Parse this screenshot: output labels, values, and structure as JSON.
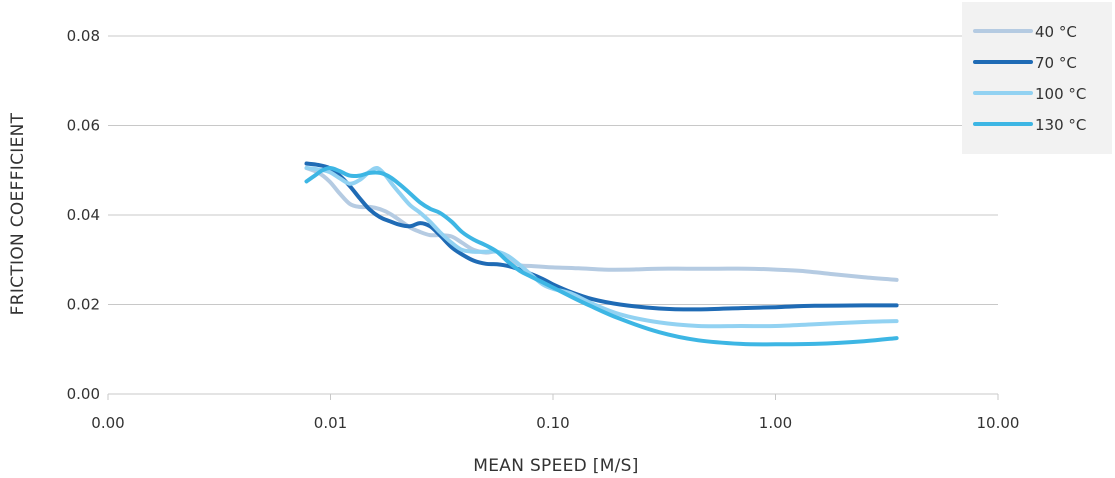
{
  "chart_data": {
    "type": "line",
    "xlabel": "MEAN SPEED [M/S]",
    "ylabel": "FRICTION COEFFICIENT",
    "xscale": "log",
    "xlim": [
      0.001,
      10
    ],
    "ylim": [
      0,
      0.08
    ],
    "x_ticks": [
      {
        "value": 0.001,
        "label": "0.00"
      },
      {
        "value": 0.01,
        "label": "0.01"
      },
      {
        "value": 0.1,
        "label": "0.10"
      },
      {
        "value": 1,
        "label": "1.00"
      },
      {
        "value": 10,
        "label": "10.00"
      }
    ],
    "y_ticks": [
      {
        "value": 0,
        "label": "0.00"
      },
      {
        "value": 0.02,
        "label": "0.02"
      },
      {
        "value": 0.04,
        "label": "0.04"
      },
      {
        "value": 0.06,
        "label": "0.06"
      },
      {
        "value": 0.08,
        "label": "0.08"
      }
    ],
    "grid": "horizontal",
    "legend_position": "top-right",
    "series": [
      {
        "name": "40 °C",
        "color": "#b5cbe2",
        "points": [
          [
            0.0078,
            0.0505
          ],
          [
            0.0088,
            0.0495
          ],
          [
            0.0099,
            0.0475
          ],
          [
            0.011,
            0.0448
          ],
          [
            0.0122,
            0.0425
          ],
          [
            0.0135,
            0.0418
          ],
          [
            0.015,
            0.0418
          ],
          [
            0.0167,
            0.0413
          ],
          [
            0.0185,
            0.0403
          ],
          [
            0.0205,
            0.0388
          ],
          [
            0.0228,
            0.0372
          ],
          [
            0.0253,
            0.0362
          ],
          [
            0.028,
            0.0355
          ],
          [
            0.031,
            0.0355
          ],
          [
            0.035,
            0.0352
          ],
          [
            0.039,
            0.0338
          ],
          [
            0.044,
            0.0322
          ],
          [
            0.05,
            0.0316
          ],
          [
            0.056,
            0.0318
          ],
          [
            0.063,
            0.0303
          ],
          [
            0.071,
            0.0288
          ],
          [
            0.08,
            0.0286
          ],
          [
            0.1,
            0.0283
          ],
          [
            0.13,
            0.0281
          ],
          [
            0.17,
            0.0278
          ],
          [
            0.22,
            0.0278
          ],
          [
            0.3,
            0.028
          ],
          [
            0.4,
            0.028
          ],
          [
            0.55,
            0.028
          ],
          [
            0.75,
            0.028
          ],
          [
            1.0,
            0.0278
          ],
          [
            1.3,
            0.0275
          ],
          [
            1.8,
            0.0268
          ],
          [
            2.5,
            0.0261
          ],
          [
            3.5,
            0.0255
          ]
        ]
      },
      {
        "name": "70 °C",
        "color": "#1f6bb5",
        "points": [
          [
            0.0078,
            0.0515
          ],
          [
            0.0088,
            0.0512
          ],
          [
            0.0099,
            0.0505
          ],
          [
            0.011,
            0.0488
          ],
          [
            0.0122,
            0.0465
          ],
          [
            0.0135,
            0.0438
          ],
          [
            0.015,
            0.0412
          ],
          [
            0.0167,
            0.0395
          ],
          [
            0.0185,
            0.0386
          ],
          [
            0.0205,
            0.0378
          ],
          [
            0.0228,
            0.0375
          ],
          [
            0.0253,
            0.0382
          ],
          [
            0.028,
            0.0375
          ],
          [
            0.031,
            0.0355
          ],
          [
            0.035,
            0.0328
          ],
          [
            0.039,
            0.0312
          ],
          [
            0.044,
            0.0298
          ],
          [
            0.05,
            0.0291
          ],
          [
            0.056,
            0.029
          ],
          [
            0.063,
            0.0286
          ],
          [
            0.071,
            0.0278
          ],
          [
            0.08,
            0.0268
          ],
          [
            0.09,
            0.0257
          ],
          [
            0.1,
            0.0245
          ],
          [
            0.12,
            0.0228
          ],
          [
            0.15,
            0.0212
          ],
          [
            0.2,
            0.02
          ],
          [
            0.3,
            0.0191
          ],
          [
            0.45,
            0.0189
          ],
          [
            0.7,
            0.0192
          ],
          [
            1.0,
            0.0194
          ],
          [
            1.5,
            0.0197
          ],
          [
            2.5,
            0.0198
          ],
          [
            3.5,
            0.0198
          ]
        ]
      },
      {
        "name": "100 °C",
        "color": "#92d2f2",
        "points": [
          [
            0.0078,
            0.0505
          ],
          [
            0.0088,
            0.0502
          ],
          [
            0.0099,
            0.0496
          ],
          [
            0.011,
            0.0482
          ],
          [
            0.0122,
            0.047
          ],
          [
            0.0135,
            0.0478
          ],
          [
            0.015,
            0.0497
          ],
          [
            0.0162,
            0.0505
          ],
          [
            0.0175,
            0.0491
          ],
          [
            0.019,
            0.0468
          ],
          [
            0.0205,
            0.0448
          ],
          [
            0.0228,
            0.0422
          ],
          [
            0.0253,
            0.0405
          ],
          [
            0.028,
            0.0385
          ],
          [
            0.031,
            0.0362
          ],
          [
            0.035,
            0.0338
          ],
          [
            0.039,
            0.0322
          ],
          [
            0.044,
            0.0318
          ],
          [
            0.05,
            0.0318
          ],
          [
            0.056,
            0.0318
          ],
          [
            0.063,
            0.0308
          ],
          [
            0.071,
            0.0288
          ],
          [
            0.08,
            0.0266
          ],
          [
            0.09,
            0.0245
          ],
          [
            0.1,
            0.0235
          ],
          [
            0.12,
            0.0225
          ],
          [
            0.15,
            0.0202
          ],
          [
            0.2,
            0.0178
          ],
          [
            0.3,
            0.016
          ],
          [
            0.45,
            0.0152
          ],
          [
            0.7,
            0.0152
          ],
          [
            1.0,
            0.0152
          ],
          [
            1.5,
            0.0156
          ],
          [
            2.5,
            0.0161
          ],
          [
            3.5,
            0.0163
          ]
        ]
      },
      {
        "name": "130 °C",
        "color": "#3db6e4",
        "points": [
          [
            0.0078,
            0.0475
          ],
          [
            0.0085,
            0.0488
          ],
          [
            0.0092,
            0.05
          ],
          [
            0.01,
            0.0505
          ],
          [
            0.011,
            0.0498
          ],
          [
            0.0122,
            0.0488
          ],
          [
            0.0135,
            0.0488
          ],
          [
            0.015,
            0.0494
          ],
          [
            0.0167,
            0.0494
          ],
          [
            0.0185,
            0.0485
          ],
          [
            0.0205,
            0.0468
          ],
          [
            0.0228,
            0.0448
          ],
          [
            0.0253,
            0.0428
          ],
          [
            0.028,
            0.0414
          ],
          [
            0.031,
            0.0405
          ],
          [
            0.035,
            0.0385
          ],
          [
            0.039,
            0.0362
          ],
          [
            0.044,
            0.0345
          ],
          [
            0.05,
            0.0332
          ],
          [
            0.056,
            0.0318
          ],
          [
            0.063,
            0.0295
          ],
          [
            0.071,
            0.0275
          ],
          [
            0.08,
            0.0262
          ],
          [
            0.1,
            0.0238
          ],
          [
            0.12,
            0.0218
          ],
          [
            0.15,
            0.0195
          ],
          [
            0.2,
            0.0168
          ],
          [
            0.3,
            0.0138
          ],
          [
            0.45,
            0.012
          ],
          [
            0.7,
            0.0112
          ],
          [
            1.0,
            0.0111
          ],
          [
            1.5,
            0.0112
          ],
          [
            2.5,
            0.0118
          ],
          [
            3.5,
            0.0125
          ]
        ]
      }
    ]
  }
}
